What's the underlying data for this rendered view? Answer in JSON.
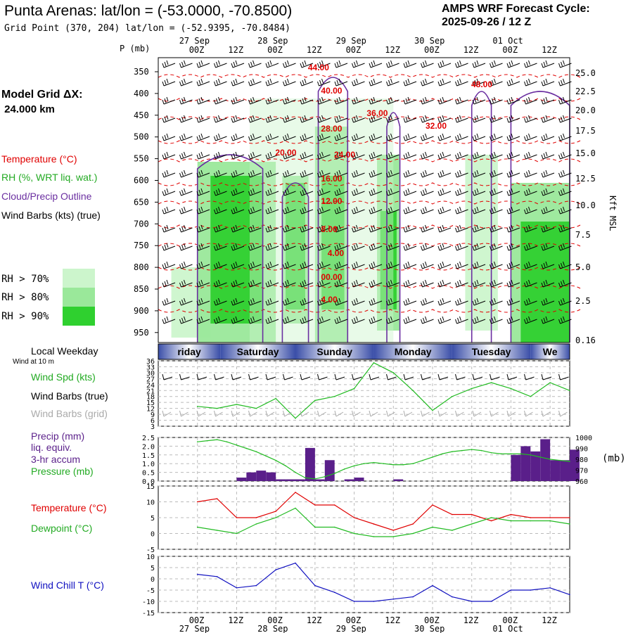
{
  "header": {
    "title": "Punta Arenas:  lat/lon = (-53.0000, -70.8500)",
    "cycle_line1": "AMPS WRF Forecast Cycle:",
    "cycle_line2": "2025-09-26 / 12  Z",
    "gridpoint": "Grid Point (370, 204) lat/lon = (-52.9395, -70.8484)"
  },
  "model_grid": {
    "label": "Model Grid ΔX:",
    "value": " 24.000 km"
  },
  "colors": {
    "temperature": "#e00000",
    "rh": "#22bb22",
    "cloud": "#6a2ea0",
    "wind": "#000000",
    "grid_wind": "#aaaaaa",
    "pressure": "#22bb22",
    "precip": "#5a1f8a",
    "dewpoint": "#22bb22",
    "windchill": "#1010c0",
    "rh70": "#ccf5cc",
    "rh80": "#9ae89a",
    "rh90": "#2fd02f"
  },
  "time_axis": {
    "top_dates": [
      "27 Sep",
      "28 Sep",
      "29 Sep",
      "30 Sep",
      "01 Oct"
    ],
    "hours": [
      "00Z",
      "12Z",
      "00Z",
      "12Z",
      "00Z",
      "12Z",
      "00Z",
      "12Z",
      "00Z",
      "12Z"
    ],
    "weekdays": [
      "riday",
      "Saturday",
      "Sunday",
      "Monday",
      "Tuesday",
      "We"
    ]
  },
  "upper_panel": {
    "p_label": "P (mb)",
    "pressure_levels": [
      "350",
      "400",
      "450",
      "500",
      "550",
      "600",
      "650",
      "700",
      "750",
      "800",
      "850",
      "900",
      "950"
    ],
    "height_label": "Kft MSL",
    "height_levels": [
      "25.0",
      "22.5",
      "20.0",
      "17.5",
      "15.0",
      "12.5",
      "10.0",
      "7.5",
      "5.0",
      "2.5",
      "0.16"
    ],
    "legend": [
      "Temperature (°C)",
      "RH (%, WRT liq. wat.)",
      "Cloud/Precip Outline",
      "Wind Barbs (kts) (true)"
    ],
    "rh_legend": [
      "RH > 70%",
      "RH > 80%",
      "RH > 90%"
    ],
    "temp_contour_labels": [
      "44.00",
      "40.00",
      "36.00",
      "32.00",
      "28.00",
      "24.00",
      "20.00",
      "16.00",
      "12.00",
      "8.00",
      "4.00",
      "00.00",
      "4.00",
      "48.00"
    ]
  },
  "wind_panel": {
    "weekday_label": "Local Weekday",
    "wind_note": "Wind at 10 m",
    "legend": [
      "Wind Spd (kts)",
      "Wind Barbs (true)",
      "Wind Barbs (grid)"
    ],
    "y_ticks": [
      "36",
      "33",
      "30",
      "27",
      "24",
      "21",
      "18",
      "15",
      "12",
      "9",
      "6",
      "3"
    ]
  },
  "precip_panel": {
    "legend": [
      "Precip (mm)",
      "liq. equiv.",
      "3-hr accum",
      "Pressure (mb)"
    ],
    "left_ticks": [
      "2.5",
      "2.0",
      "1.5",
      "1.0",
      "0.5",
      "0.0"
    ],
    "right_ticks": [
      "1000",
      "990",
      "980",
      "970",
      "960"
    ],
    "unit": "(mb)"
  },
  "temp_panel": {
    "legend": [
      "Temperature (°C)",
      "Dewpoint (°C)"
    ],
    "y_ticks": [
      "15",
      "10",
      "5",
      "0",
      "-5"
    ]
  },
  "chill_panel": {
    "legend": [
      "Wind Chill T (°C)"
    ],
    "y_ticks": [
      "10",
      "5",
      "0",
      "-5",
      "-10",
      "-15"
    ]
  },
  "chart_data": [
    {
      "type": "line",
      "title": "Wind Spd (kts)",
      "x_hours": [
        0,
        6,
        12,
        18,
        24,
        30,
        36,
        42,
        48,
        54,
        60,
        66,
        72,
        78,
        84,
        90,
        96,
        102,
        108,
        114
      ],
      "series": [
        {
          "name": "Wind Spd",
          "values": [
            13,
            12,
            14,
            12,
            17,
            7,
            16,
            18,
            22,
            35,
            30,
            21,
            11,
            18,
            22,
            25,
            22,
            18,
            25,
            21
          ]
        }
      ],
      "ylim": [
        3,
        36
      ]
    },
    {
      "type": "bar",
      "title": "Precip (mm) liq. equiv. 3-hr accum / Pressure (mb)",
      "x_hours": [
        0,
        3,
        6,
        9,
        12,
        15,
        18,
        21,
        24,
        27,
        30,
        33,
        36,
        39,
        42,
        45,
        48,
        51,
        54,
        57,
        60,
        63,
        66,
        69,
        72,
        75,
        78,
        81,
        84,
        87,
        90,
        93,
        96,
        99,
        102,
        105,
        108,
        111,
        114
      ],
      "series": [
        {
          "name": "Precip",
          "values": [
            0,
            0,
            0,
            0,
            0.2,
            0.5,
            0.6,
            0.5,
            0.1,
            0.1,
            0.1,
            1.9,
            0.1,
            1.2,
            0,
            0.1,
            0.2,
            0,
            0,
            0,
            0.1,
            0,
            0,
            0,
            0,
            0,
            0,
            0,
            0,
            0,
            0,
            0,
            1.5,
            2.0,
            1.7,
            2.4,
            1.2,
            1.2,
            1.8
          ]
        },
        {
          "name": "Pressure",
          "values": [
            996,
            997,
            998,
            996,
            993,
            990,
            987,
            983,
            979,
            974,
            968,
            963,
            962,
            964,
            967,
            971,
            974,
            976,
            977,
            976,
            975,
            975,
            976,
            979,
            982,
            985,
            987,
            988,
            989,
            988,
            986,
            985,
            985,
            985,
            984,
            982,
            980,
            979,
            978
          ]
        }
      ],
      "ylim": [
        0,
        2.5
      ],
      "y2lim": [
        960,
        1000
      ]
    },
    {
      "type": "line",
      "title": "Temperature / Dewpoint (°C)",
      "x_hours": [
        0,
        6,
        12,
        18,
        24,
        30,
        36,
        42,
        48,
        54,
        60,
        66,
        72,
        78,
        84,
        90,
        96,
        102,
        108,
        114
      ],
      "series": [
        {
          "name": "Temperature",
          "values": [
            10,
            11,
            5,
            5,
            7,
            13,
            9,
            9,
            5,
            3,
            1,
            3,
            9,
            6,
            6,
            4,
            6,
            5,
            5,
            5
          ]
        },
        {
          "name": "Dewpoint",
          "values": [
            2,
            1,
            0,
            3,
            5,
            8,
            2,
            2,
            0,
            -1,
            -1,
            0,
            2,
            1,
            3,
            5,
            4,
            4,
            4,
            3
          ]
        }
      ],
      "ylim": [
        -5,
        15
      ]
    },
    {
      "type": "line",
      "title": "Wind Chill T (°C)",
      "x_hours": [
        0,
        6,
        12,
        18,
        24,
        30,
        36,
        42,
        48,
        54,
        60,
        66,
        72,
        78,
        84,
        90,
        96,
        102,
        108,
        114
      ],
      "series": [
        {
          "name": "Wind Chill T",
          "values": [
            2,
            1,
            -4,
            -3,
            4,
            7,
            -3,
            -6,
            -10,
            -10,
            -9,
            -8,
            -3,
            -8,
            -10,
            -10,
            -5,
            -5,
            -4,
            -7
          ]
        }
      ],
      "ylim": [
        -15,
        10
      ]
    }
  ]
}
